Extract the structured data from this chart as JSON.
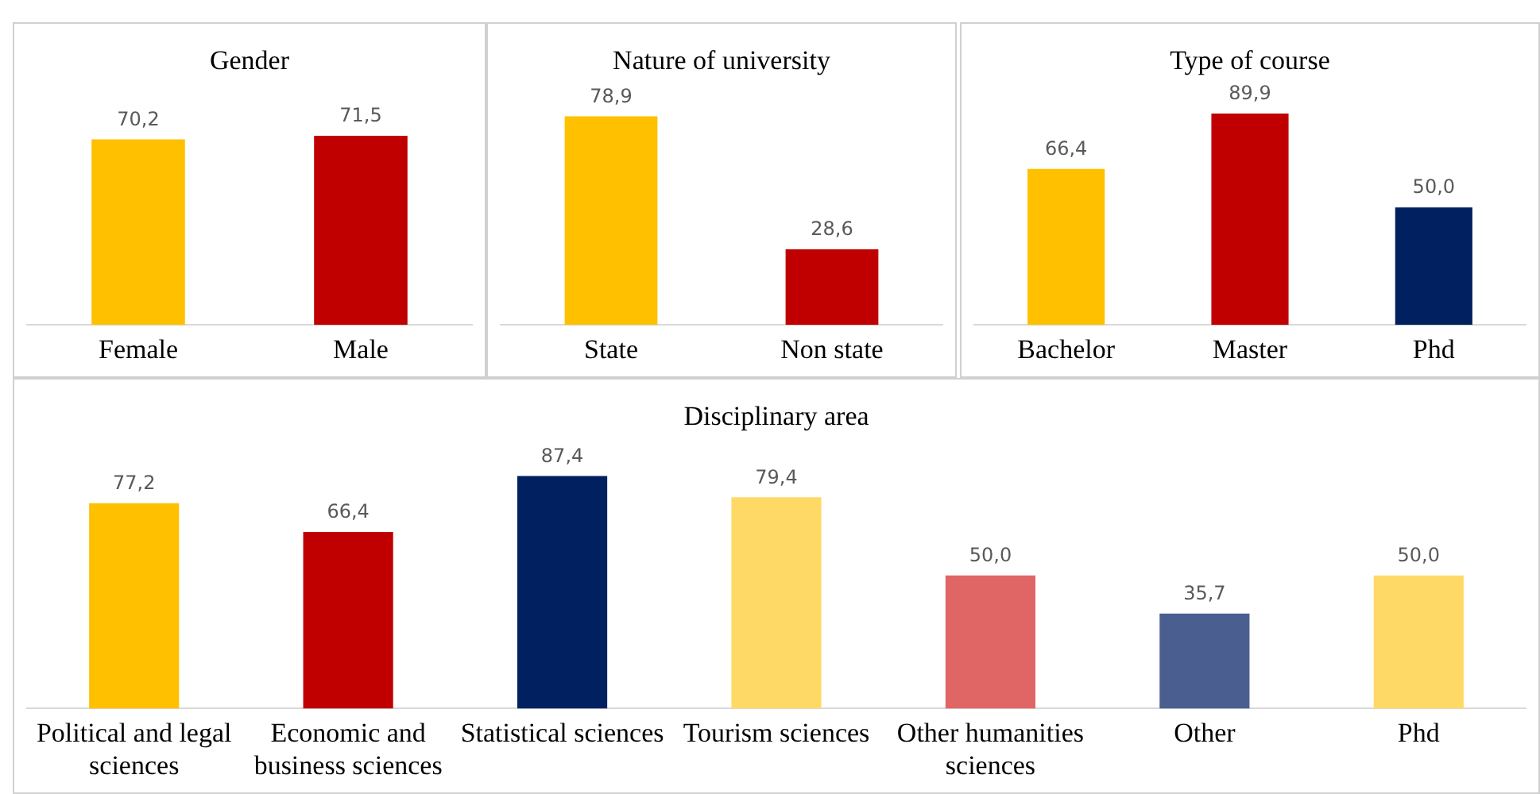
{
  "chart_data": [
    {
      "type": "bar",
      "title": "Gender",
      "categories": [
        "Female",
        "Male"
      ],
      "values": [
        70.2,
        71.5
      ],
      "colors": [
        "#ffc000",
        "#c00000"
      ],
      "value_labels": [
        "70,2",
        "71,5"
      ]
    },
    {
      "type": "bar",
      "title": "Nature of university",
      "categories": [
        "State",
        "Non state"
      ],
      "values": [
        78.9,
        28.6
      ],
      "colors": [
        "#ffc000",
        "#c00000"
      ],
      "value_labels": [
        "78,9",
        "28,6"
      ]
    },
    {
      "type": "bar",
      "title": "Type of course",
      "categories": [
        "Bachelor",
        "Master",
        "Phd"
      ],
      "values": [
        66.4,
        89.9,
        50.0
      ],
      "colors": [
        "#ffc000",
        "#c00000",
        "#002060"
      ],
      "value_labels": [
        "66,4",
        "89,9",
        "50,0"
      ]
    },
    {
      "type": "bar",
      "title": "Disciplinary area",
      "categories": [
        "Political and legal sciences",
        "Economic and business sciences",
        "Statistical sciences",
        "Tourism sciences",
        "Other humanities sciences",
        "Other",
        "Phd"
      ],
      "values": [
        77.2,
        66.4,
        87.4,
        79.4,
        50.0,
        35.7,
        50.0
      ],
      "colors": [
        "#ffc000",
        "#c00000",
        "#002060",
        "#ffd966",
        "#e06666",
        "#4a5f8f",
        "#ffd966"
      ],
      "value_labels": [
        "77,2",
        "66,4",
        "87,4",
        "79,4",
        "50,0",
        "35,7",
        "50,0"
      ]
    }
  ]
}
